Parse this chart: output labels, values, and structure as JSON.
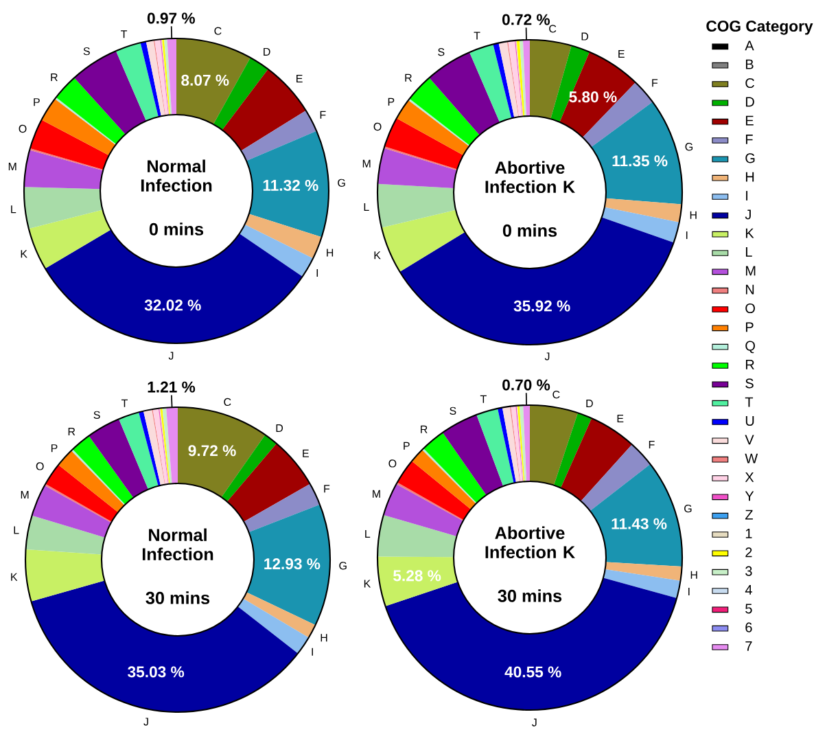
{
  "chart_data": [
    {
      "type": "donut",
      "title": "Normal Infection",
      "subtitle": "0 mins",
      "categories": [
        null,
        null,
        "C",
        "D",
        "E",
        "F",
        "G",
        "H",
        "I",
        "J",
        "K",
        "L",
        "M",
        null,
        "O",
        "P",
        null,
        "R",
        "S",
        "T",
        null,
        null,
        null,
        null,
        null,
        null,
        null,
        null,
        null,
        null,
        null,
        null,
        null
      ],
      "values": [
        0,
        0,
        8.07,
        2.2,
        5.9,
        2.4,
        11.32,
        2.4,
        2.2,
        32.02,
        4.5,
        4.4,
        3.9,
        0.2,
        3.2,
        2.6,
        0.2,
        2.8,
        5.2,
        2.7,
        0.6,
        0.8,
        0.1,
        0.6,
        0.1,
        0,
        0.1,
        0.2,
        0.32,
        0,
        0,
        0,
        0.97
      ],
      "value_labels": [
        null,
        null,
        "8.07 %",
        null,
        null,
        null,
        "11.32 %",
        null,
        null,
        "32.02 %",
        null,
        null,
        null,
        null,
        null,
        null,
        null,
        null,
        null,
        null,
        null,
        null,
        null,
        null,
        null,
        null,
        null,
        null,
        null,
        null,
        null,
        null,
        "0.97 %"
      ],
      "colors": [
        "#000000",
        "#808080",
        "#808020",
        "#00b000",
        "#a00000",
        "#8c8cc8",
        "#1a94b0",
        "#f0b478",
        "#8cbef0",
        "#0000a0",
        "#c8f064",
        "#a8dca8",
        "#b450dc",
        "#f08080",
        "#ff0000",
        "#ff8000",
        "#b4f0dc",
        "#00ff00",
        "#780096",
        "#50f0a0",
        "#0000ff",
        "#fadcdc",
        "#f08080",
        "#ffd2e6",
        "#f050c8",
        "#3ca0f0",
        "#e6dcc0",
        "#ffff00",
        "#c8f0c8",
        "#c8dcf0",
        "#f01e78",
        "#8c8cf0",
        "#e68cf0"
      ]
    },
    {
      "type": "donut",
      "title": "Abortive Infection K",
      "subtitle": "0 mins",
      "legend": "right",
      "legend_title": "COG Category",
      "categories": [
        "A",
        "B",
        "C",
        "D",
        "E",
        "F",
        "G",
        "H",
        "I",
        "J",
        "K",
        "L",
        "M",
        "N",
        "O",
        "P",
        "Q",
        "R",
        "S",
        "T",
        "U",
        "V",
        "W",
        "X",
        "Y",
        "Z",
        "1",
        "2",
        "3",
        "4",
        "5",
        "6",
        "7"
      ],
      "values": [
        0,
        0,
        4.4,
        2.0,
        5.8,
        2.7,
        11.35,
        1.9,
        2.2,
        35.92,
        5.0,
        4.6,
        3.8,
        0.2,
        3.2,
        2.25,
        0.2,
        3.0,
        5.0,
        2.6,
        0.6,
        0.9,
        0.1,
        0.7,
        0.1,
        0,
        0.1,
        0.3,
        0.36,
        0,
        0,
        0,
        0.72
      ],
      "value_labels": [
        null,
        null,
        null,
        null,
        "5.80 %",
        null,
        "11.35 %",
        null,
        null,
        "35.92 %",
        null,
        null,
        null,
        null,
        null,
        null,
        null,
        null,
        null,
        null,
        null,
        null,
        null,
        null,
        null,
        null,
        null,
        null,
        null,
        null,
        null,
        null,
        "0.72 %"
      ],
      "colors": [
        "#000000",
        "#808080",
        "#808020",
        "#00b000",
        "#a00000",
        "#8c8cc8",
        "#1a94b0",
        "#f0b478",
        "#8cbef0",
        "#0000a0",
        "#c8f064",
        "#a8dca8",
        "#b450dc",
        "#f08080",
        "#ff0000",
        "#ff8000",
        "#b4f0dc",
        "#00ff00",
        "#780096",
        "#50f0a0",
        "#0000ff",
        "#fadcdc",
        "#f08080",
        "#ffd2e6",
        "#f050c8",
        "#3ca0f0",
        "#e6dcc0",
        "#ffff00",
        "#c8f0c8",
        "#c8dcf0",
        "#f01e78",
        "#8c8cf0",
        "#e68cf0"
      ]
    },
    {
      "type": "donut",
      "title": "Normal Infection",
      "subtitle": "30 mins",
      "categories": [
        null,
        null,
        "C",
        "D",
        "E",
        "F",
        "G",
        "H",
        "I",
        "J",
        "K",
        "L",
        "M",
        null,
        "O",
        "P",
        null,
        "R",
        "S",
        "T",
        null,
        null,
        null,
        null,
        null,
        null,
        null,
        null,
        null,
        null,
        null,
        null,
        null
      ],
      "values": [
        0,
        0,
        9.72,
        1.5,
        5.5,
        2.4,
        12.93,
        1.5,
        2.0,
        35.03,
        5.5,
        3.6,
        3.4,
        0.2,
        2.4,
        2.0,
        0.2,
        2.2,
        3.6,
        2.2,
        0.5,
        0.9,
        0.1,
        0.6,
        0.1,
        0,
        0.1,
        0.2,
        0.41,
        0,
        0,
        0,
        1.21
      ],
      "value_labels": [
        null,
        null,
        "9.72 %",
        null,
        null,
        null,
        "12.93 %",
        null,
        null,
        "35.03 %",
        null,
        null,
        null,
        null,
        null,
        null,
        null,
        null,
        null,
        null,
        null,
        null,
        null,
        null,
        null,
        null,
        null,
        null,
        null,
        null,
        null,
        null,
        "1.21 %"
      ],
      "colors": [
        "#000000",
        "#808080",
        "#808020",
        "#00b000",
        "#a00000",
        "#8c8cc8",
        "#1a94b0",
        "#f0b478",
        "#8cbef0",
        "#0000a0",
        "#c8f064",
        "#a8dca8",
        "#b450dc",
        "#f08080",
        "#ff0000",
        "#ff8000",
        "#b4f0dc",
        "#00ff00",
        "#780096",
        "#50f0a0",
        "#0000ff",
        "#fadcdc",
        "#f08080",
        "#ffd2e6",
        "#f050c8",
        "#3ca0f0",
        "#e6dcc0",
        "#ffff00",
        "#c8f0c8",
        "#c8dcf0",
        "#f01e78",
        "#8c8cf0",
        "#e68cf0"
      ]
    },
    {
      "type": "donut",
      "title": "Abortive Infection K",
      "subtitle": "30 mins",
      "categories": [
        null,
        null,
        "C",
        "D",
        "E",
        "F",
        "G",
        "H",
        "I",
        "J",
        "K",
        "L",
        "M",
        null,
        "O",
        "P",
        null,
        "R",
        "S",
        "T",
        null,
        null,
        null,
        null,
        null,
        null,
        null,
        null,
        null,
        null,
        null,
        null,
        null
      ],
      "values": [
        0,
        0,
        5.1,
        1.55,
        5.05,
        2.8,
        11.43,
        1.5,
        1.85,
        40.55,
        5.28,
        4.4,
        3.5,
        0.2,
        2.7,
        1.6,
        0.2,
        2.6,
        4.0,
        2.3,
        0.5,
        0.8,
        0.1,
        0.5,
        0.1,
        0,
        0.1,
        0.2,
        0.39,
        0,
        0,
        0,
        0.7
      ],
      "value_labels": [
        null,
        null,
        null,
        null,
        null,
        null,
        "11.43 %",
        null,
        null,
        "40.55 %",
        "5.28 %",
        null,
        null,
        null,
        null,
        null,
        null,
        null,
        null,
        null,
        null,
        null,
        null,
        null,
        null,
        null,
        null,
        null,
        null,
        null,
        null,
        null,
        "0.70 %"
      ],
      "colors": [
        "#000000",
        "#808080",
        "#808020",
        "#00b000",
        "#a00000",
        "#8c8cc8",
        "#1a94b0",
        "#f0b478",
        "#8cbef0",
        "#0000a0",
        "#c8f064",
        "#a8dca8",
        "#b450dc",
        "#f08080",
        "#ff0000",
        "#ff8000",
        "#b4f0dc",
        "#00ff00",
        "#780096",
        "#50f0a0",
        "#0000ff",
        "#fadcdc",
        "#f08080",
        "#ffd2e6",
        "#f050c8",
        "#3ca0f0",
        "#e6dcc0",
        "#ffff00",
        "#c8f0c8",
        "#c8dcf0",
        "#f01e78",
        "#8c8cf0",
        "#e68cf0"
      ]
    }
  ]
}
